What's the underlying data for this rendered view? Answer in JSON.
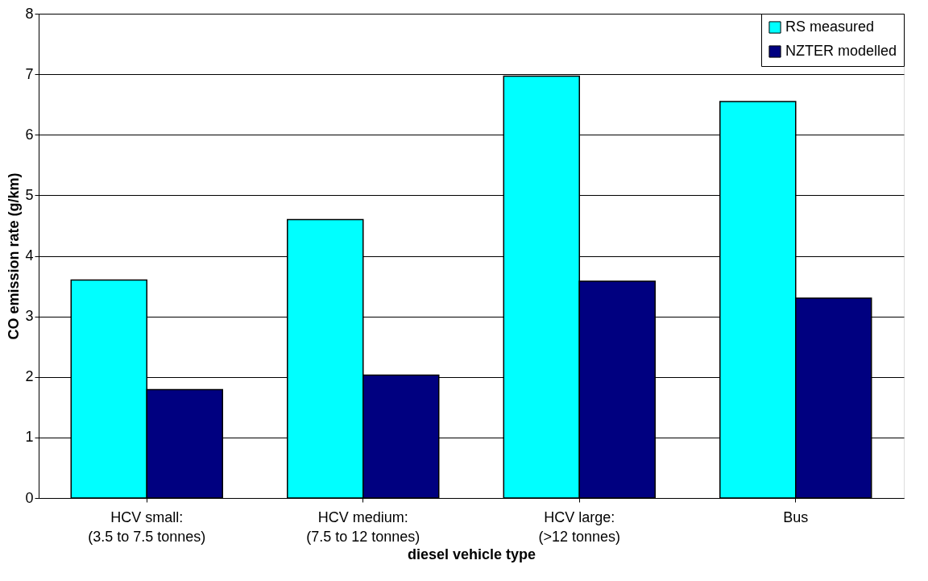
{
  "chart_data": {
    "type": "bar",
    "xlabel": "diesel vehicle type",
    "ylabel": "CO emission rate (g/km)",
    "categories": [
      "HCV small:\n(3.5 to 7.5 tonnes)",
      "HCV medium:\n(7.5 to 12 tonnes)",
      "HCV large:\n(>12 tonnes)",
      "Bus"
    ],
    "series": [
      {
        "name": "RS measured",
        "color": "#00ffff",
        "values": [
          3.6,
          4.6,
          6.97,
          6.55
        ]
      },
      {
        "name": "NZTER modelled",
        "color": "#000080",
        "values": [
          1.79,
          2.03,
          3.58,
          3.3
        ]
      }
    ],
    "ylim": [
      0,
      8
    ],
    "yticks": [
      0,
      1,
      2,
      3,
      4,
      5,
      6,
      7,
      8
    ],
    "grid": "y",
    "legend": "top right"
  }
}
